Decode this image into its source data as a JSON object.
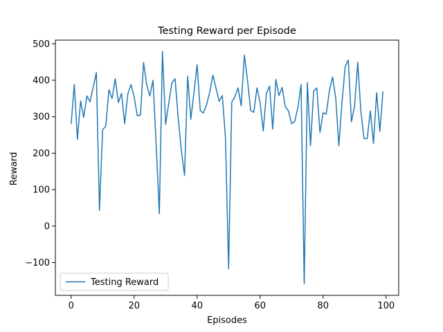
{
  "chart_data": {
    "type": "line",
    "title": "Testing Reward per Episode",
    "xlabel": "Episodes",
    "ylabel": "Reward",
    "xlim": [
      -5,
      104
    ],
    "ylim": [
      -190,
      510
    ],
    "xticks": [
      0,
      20,
      40,
      60,
      80,
      100
    ],
    "yticks": [
      -100,
      0,
      100,
      200,
      300,
      400,
      500
    ],
    "ytick_labels": [
      "−100",
      "0",
      "100",
      "200",
      "300",
      "400",
      "500"
    ],
    "grid": false,
    "legend_position": "lower-left",
    "series": [
      {
        "name": "Testing Reward",
        "color": "#1f77b4",
        "x": [
          0,
          1,
          2,
          3,
          4,
          5,
          6,
          7,
          8,
          9,
          10,
          11,
          12,
          13,
          14,
          15,
          16,
          17,
          18,
          19,
          20,
          21,
          22,
          23,
          24,
          25,
          26,
          27,
          28,
          29,
          30,
          31,
          32,
          33,
          34,
          35,
          36,
          37,
          38,
          39,
          40,
          41,
          42,
          43,
          44,
          45,
          46,
          47,
          48,
          49,
          50,
          51,
          52,
          53,
          54,
          55,
          56,
          57,
          58,
          59,
          60,
          61,
          62,
          63,
          64,
          65,
          66,
          67,
          68,
          69,
          70,
          71,
          72,
          73,
          74,
          75,
          76,
          77,
          78,
          79,
          80,
          81,
          82,
          83,
          84,
          85,
          86,
          87,
          88,
          89,
          90,
          91,
          92,
          93,
          94,
          95,
          96,
          97,
          98,
          99
        ],
        "y": [
          280,
          388,
          238,
          343,
          298,
          357,
          341,
          381,
          421,
          43,
          264,
          274,
          374,
          350,
          404,
          339,
          364,
          281,
          362,
          388,
          355,
          303,
          304,
          449,
          387,
          357,
          400,
          223,
          34,
          479,
          279,
          337,
          393,
          404,
          296,
          207,
          139,
          411,
          293,
          366,
          442,
          317,
          310,
          333,
          367,
          414,
          378,
          342,
          358,
          243,
          -117,
          340,
          355,
          379,
          330,
          469,
          400,
          317,
          312,
          379,
          339,
          261,
          364,
          384,
          266,
          402,
          358,
          380,
          327,
          316,
          281,
          287,
          326,
          388,
          -158,
          393,
          221,
          370,
          379,
          257,
          311,
          307,
          371,
          409,
          352,
          220,
          338,
          437,
          455,
          286,
          330,
          449,
          314,
          240,
          240,
          316,
          227,
          366,
          260,
          369
        ]
      }
    ]
  }
}
